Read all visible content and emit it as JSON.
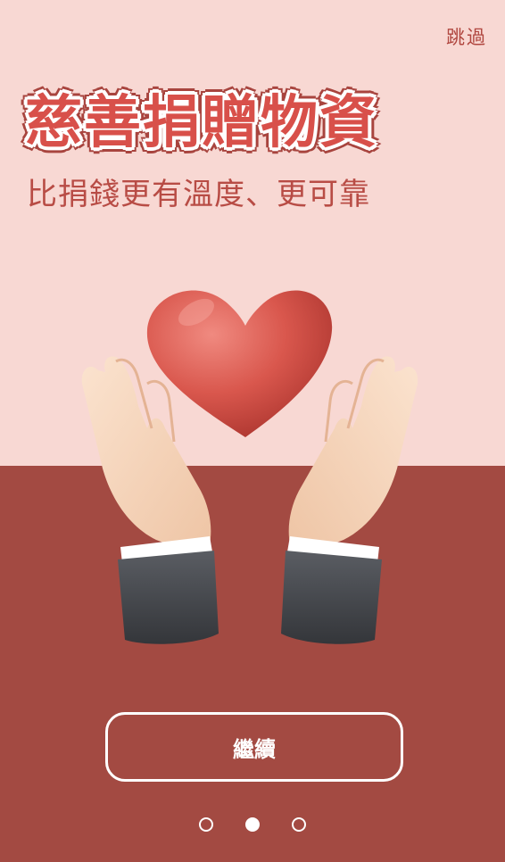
{
  "header": {
    "skip_label": "跳過"
  },
  "hero": {
    "title": "慈善捐贈物資",
    "subtitle": "比捐錢更有溫度、更可靠"
  },
  "illustration": {
    "icon": "heart-hands-icon"
  },
  "footer": {
    "continue_label": "繼續",
    "pagination": {
      "total": 3,
      "current": 2
    }
  },
  "colors": {
    "top_background": "#f8d8d3",
    "bottom_background": "#a34a42",
    "accent": "#d8504a"
  }
}
